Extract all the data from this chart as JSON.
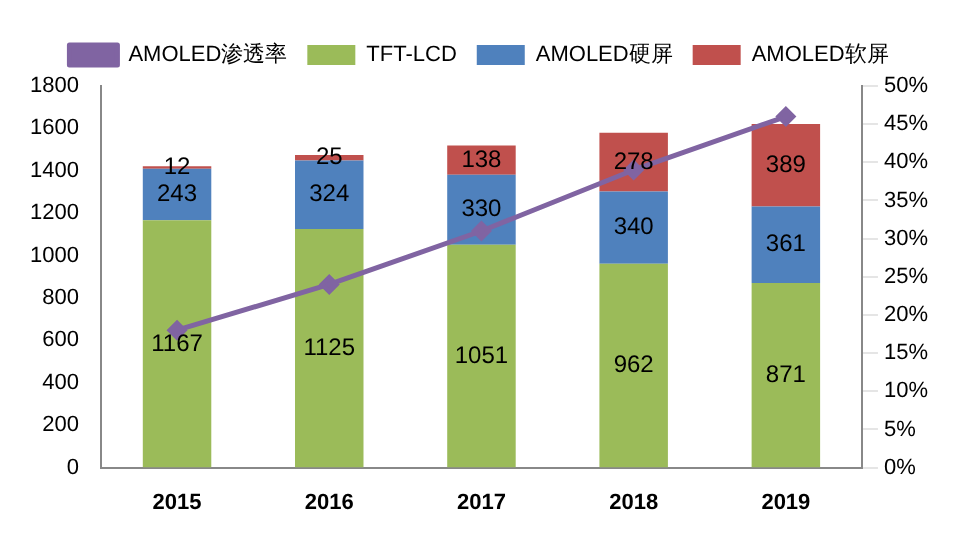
{
  "chart_data": {
    "type": "bar",
    "stacked": true,
    "categories": [
      "2015",
      "2016",
      "2017",
      "2018",
      "2019"
    ],
    "series": [
      {
        "name": "TFT-LCD",
        "color": "#9bbb59",
        "values": [
          1167,
          1125,
          1051,
          962,
          871
        ],
        "data_labels": true
      },
      {
        "name": "AMOLED硬屏",
        "color": "#4f81bd",
        "values": [
          243,
          324,
          330,
          340,
          361
        ],
        "data_labels": true
      },
      {
        "name": "AMOLED软屏",
        "color": "#c0504d",
        "values": [
          12,
          25,
          138,
          278,
          389
        ],
        "data_labels": true
      },
      {
        "name": "AMOLED渗透率",
        "type": "line",
        "axis": "y2",
        "color": "#8064a2",
        "marker": "diamond",
        "values": [
          18,
          24,
          31,
          39,
          46
        ]
      }
    ],
    "ylim": [
      0,
      1800
    ],
    "yticks": [
      0,
      200,
      400,
      600,
      800,
      1000,
      1200,
      1400,
      1600,
      1800
    ],
    "y2lim": [
      0,
      50
    ],
    "y2ticks": [
      {
        "value": 0,
        "label": "0%"
      },
      {
        "value": 5,
        "label": "5%"
      },
      {
        "value": 10,
        "label": "10%"
      },
      {
        "value": 15,
        "label": "15%"
      },
      {
        "value": 20,
        "label": "20%"
      },
      {
        "value": 25,
        "label": "25%"
      },
      {
        "value": 30,
        "label": "30%"
      },
      {
        "value": 35,
        "label": "35%"
      },
      {
        "value": 40,
        "label": "40%"
      },
      {
        "value": 45,
        "label": "45%"
      },
      {
        "value": 50,
        "label": "50%"
      }
    ],
    "grid": false,
    "legend": "top"
  }
}
